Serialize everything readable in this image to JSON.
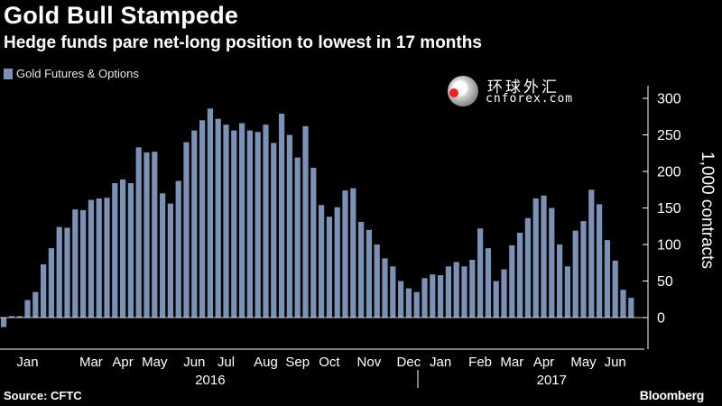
{
  "title": "Gold Bull Stampede",
  "subtitle": "Hedge funds pare net-long position to lowest in 17 months",
  "legend": "Gold Futures & Options",
  "watermark": {
    "cn": "环球外汇",
    "en": "cnforex.com"
  },
  "source": "Source: CFTC",
  "brand": "Bloomberg",
  "chart_data": {
    "type": "bar",
    "title": "Gold Bull Stampede",
    "subtitle": "Hedge funds pare net-long position to lowest in 17 months",
    "ylabel": "1,000 contracts",
    "ylim": [
      -45,
      305
    ],
    "yticks": [
      0,
      50,
      100,
      150,
      200,
      250,
      300
    ],
    "grid": false,
    "legend_position": "top-left",
    "colors": {
      "bar": "#7b91b6",
      "background": "#000000",
      "axis": "#ffffff"
    },
    "series": [
      {
        "name": "Gold Futures & Options",
        "values": [
          -13,
          2,
          2,
          24,
          35,
          73,
          95,
          124,
          123,
          148,
          147,
          161,
          163,
          164,
          184,
          189,
          184,
          233,
          226,
          227,
          170,
          156,
          187,
          240,
          256,
          270,
          286,
          272,
          264,
          256,
          266,
          256,
          254,
          264,
          239,
          279,
          250,
          219,
          262,
          205,
          154,
          138,
          151,
          174,
          177,
          131,
          120,
          100,
          81,
          70,
          50,
          40,
          35,
          54,
          59,
          58,
          70,
          76,
          70,
          79,
          122,
          95,
          50,
          66,
          99,
          116,
          136,
          163,
          167,
          150,
          100,
          70,
          119,
          132,
          175,
          155,
          106,
          78,
          38,
          27
        ]
      }
    ],
    "x_month_labels": [
      {
        "label": "Jan",
        "bar": 3
      },
      {
        "label": "Mar",
        "bar": 11
      },
      {
        "label": "Apr",
        "bar": 15
      },
      {
        "label": "May",
        "bar": 19
      },
      {
        "label": "Jun",
        "bar": 24
      },
      {
        "label": "Jul",
        "bar": 28
      },
      {
        "label": "Aug",
        "bar": 33
      },
      {
        "label": "Sep",
        "bar": 37
      },
      {
        "label": "Oct",
        "bar": 41
      },
      {
        "label": "Nov",
        "bar": 46
      },
      {
        "label": "Dec",
        "bar": 51
      },
      {
        "label": "Jan",
        "bar": 55
      },
      {
        "label": "Feb",
        "bar": 60
      },
      {
        "label": "Mar",
        "bar": 64
      },
      {
        "label": "Apr",
        "bar": 68
      },
      {
        "label": "May",
        "bar": 73
      },
      {
        "label": "Jun",
        "bar": 77
      }
    ],
    "x_year_labels": [
      {
        "label": "2016",
        "bar": 26
      },
      {
        "label": "2017",
        "bar": 69
      }
    ],
    "year_divider_bar": 52.5
  }
}
